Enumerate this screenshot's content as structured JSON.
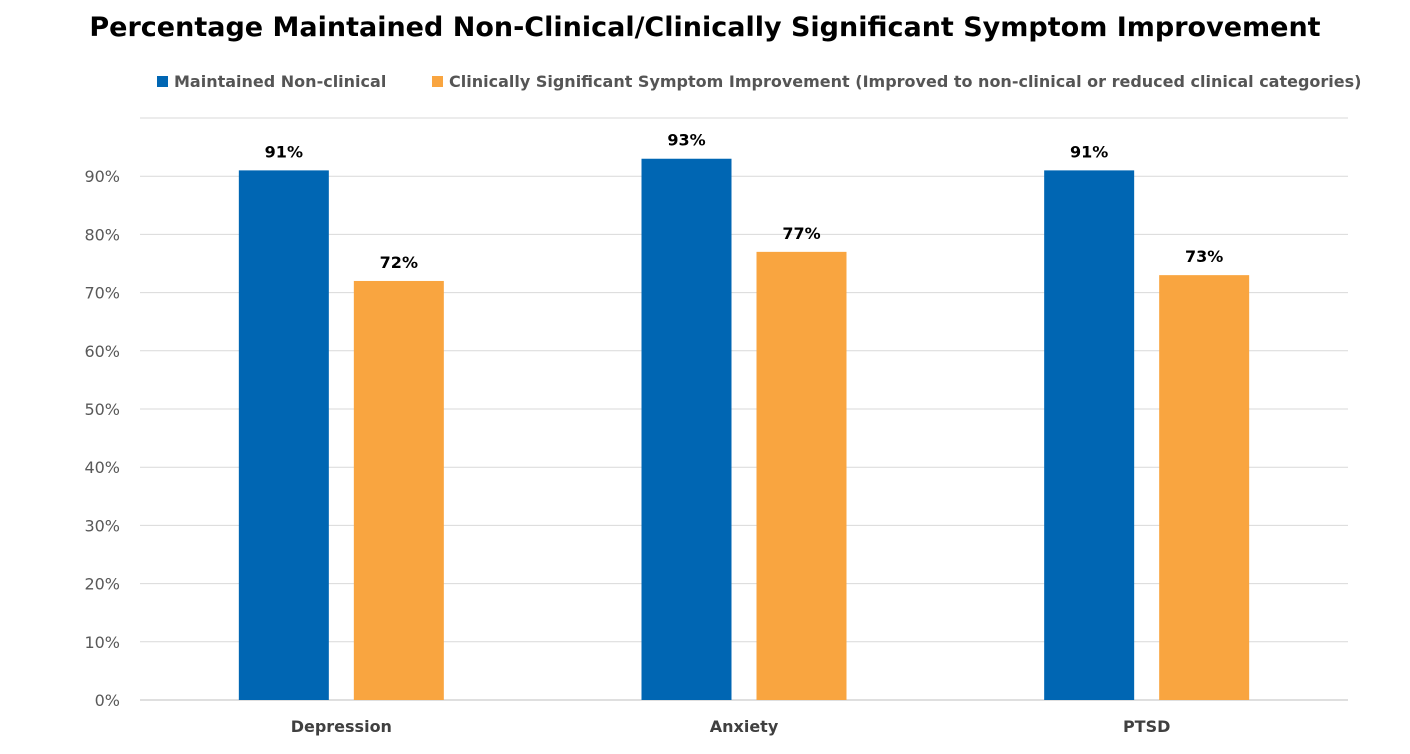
{
  "chart_data": {
    "type": "bar",
    "title": "Percentage Maintained Non-Clinical/Clinically Significant Symptom Improvement",
    "categories": [
      "Depression",
      "Anxiety",
      "PTSD"
    ],
    "series": [
      {
        "name": "Maintained Non-clinical",
        "color": "#0066B3",
        "values": [
          91,
          93,
          91
        ],
        "labels": [
          "91%",
          "93%",
          "91%"
        ]
      },
      {
        "name": "Clinically Significant Symptom Improvement (Improved to non-clinical or reduced clinical categories)",
        "color": "#F9A540",
        "values": [
          72,
          77,
          73
        ],
        "labels": [
          "72%",
          "77%",
          "73%"
        ]
      }
    ],
    "ylim": [
      0,
      100
    ],
    "yticks": [
      "0%",
      "10%",
      "20%",
      "30%",
      "40%",
      "50%",
      "60%",
      "70%",
      "80%",
      "90%"
    ],
    "ytick_values": [
      0,
      10,
      20,
      30,
      40,
      50,
      60,
      70,
      80,
      90
    ],
    "legend_position": "top",
    "grid": true,
    "gridline_color": "#D9D9D9"
  }
}
